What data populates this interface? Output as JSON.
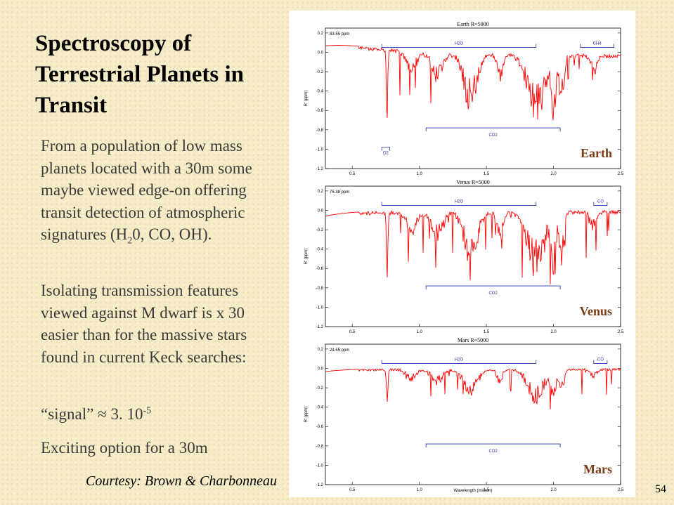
{
  "slide": {
    "title": "Spectroscopy of Terrestrial Planets in Transit",
    "paragraph1": "From a population of low mass planets located with a 30m some maybe viewed edge-on offering transit detection of atmospheric signatures (H",
    "paragraph1_sub": "2",
    "paragraph1_end": "0, CO, OH).",
    "paragraph2": "Isolating transmission features viewed against M dwarf is x 30 easier than for the massive stars found in current Keck searches:",
    "signal_prefix": "“signal” ≈ 3. 10",
    "signal_exp": "-5",
    "paragraph4": "Exciting option for a 30m",
    "courtesy": "Courtesy: Brown & Charbonneau",
    "page_number": "54"
  },
  "figure": {
    "x_axis_label": "Wavelength (micron)",
    "y_axis_label": "R' (ppm)",
    "y_ticks": [
      "0.2",
      "0.0",
      "-0.2",
      "-0.4",
      "-0.6",
      "-0.8",
      "-1.0",
      "-1.2"
    ],
    "x_ticks": [
      "0.5",
      "1.0",
      "1.5",
      "2.0",
      "2.5"
    ],
    "line_color": "#ff0000",
    "band_color": "#2233aa",
    "panels": [
      {
        "title": "Earth   R=5000",
        "ppm": "83.55 ppm",
        "planet": "Earth",
        "bands": {
          "h2o": "H2O",
          "ch4": "CH4",
          "co2": "CO2",
          "o2": "O2",
          "co": ""
        }
      },
      {
        "title": "Venus   R=5000",
        "ppm": "75.38 ppm",
        "planet": "Venus",
        "bands": {
          "h2o": "H2O",
          "ch4": "",
          "co2": "CO2",
          "o2": "",
          "co": "CO"
        }
      },
      {
        "title": "Mars   R=5000",
        "ppm": "24.55 ppm",
        "planet": "Mars",
        "bands": {
          "h2o": "H2O",
          "ch4": "",
          "co2": "CO2",
          "o2": "",
          "co": "CO"
        }
      }
    ]
  }
}
